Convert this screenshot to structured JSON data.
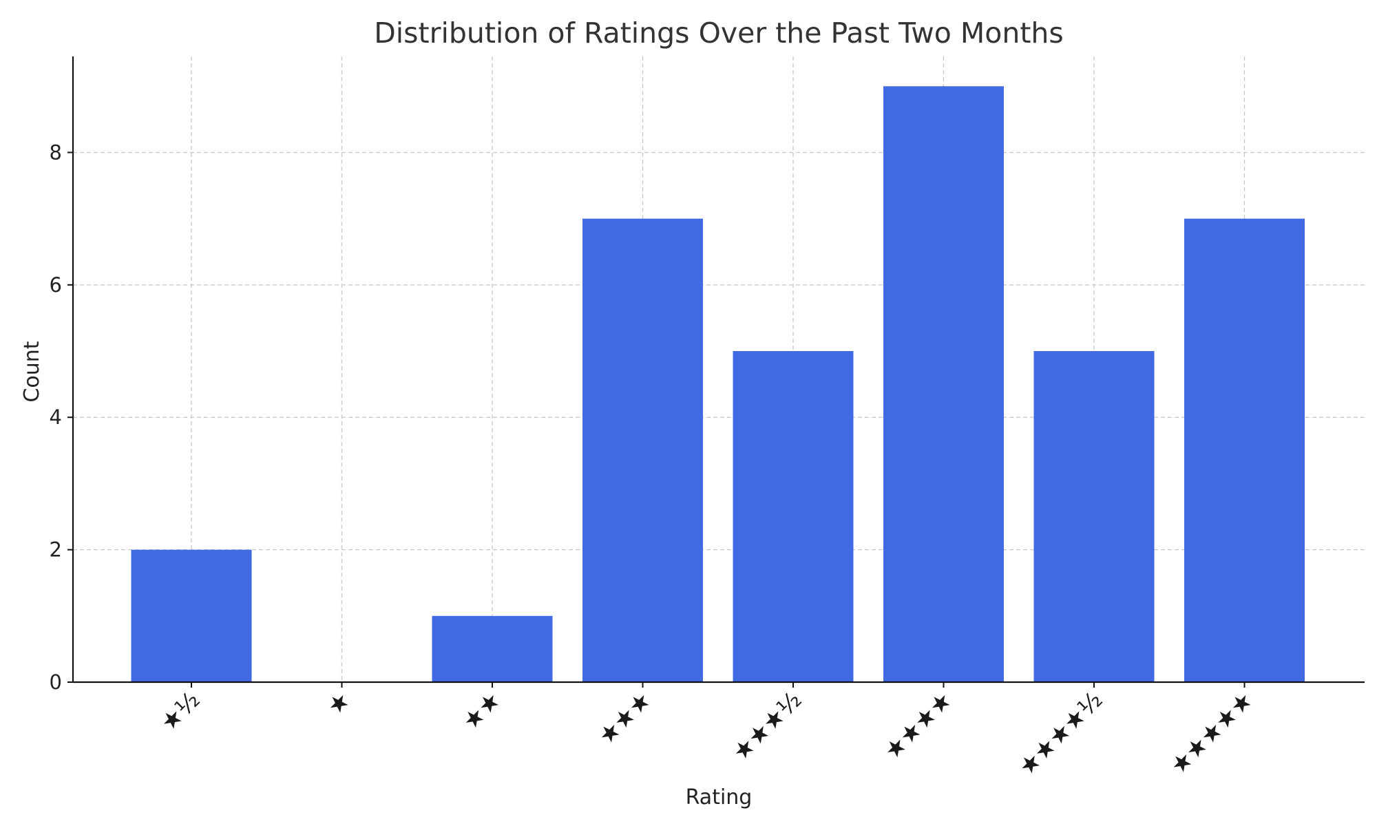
{
  "chart_data": {
    "type": "bar",
    "title": "Distribution of Ratings Over the Past Two Months",
    "xlabel": "Rating",
    "ylabel": "Count",
    "categories": [
      "★½",
      "★",
      "★★",
      "★★★",
      "★★★½",
      "★★★★",
      "★★★★½",
      "★★★★★"
    ],
    "values": [
      2,
      0,
      1,
      7,
      5,
      9,
      5,
      7
    ],
    "ylim": [
      0,
      9.45
    ],
    "yticks": [
      0,
      2,
      4,
      6,
      8
    ],
    "grid": true,
    "bar_color": "#4169e1",
    "tick_label_rotation": -45
  }
}
